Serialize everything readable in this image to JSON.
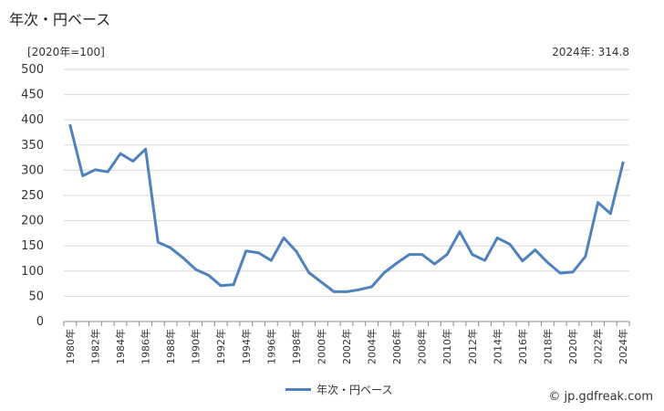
{
  "title": "年次・円ベース",
  "unit_label": "[2020年=100]",
  "latest_label": "2024年: 314.8",
  "credit": "© jp.gdfreak.com",
  "colors": {
    "series": "#4f81bd",
    "grid": "#d9d9d9",
    "axis": "#888888"
  },
  "chart_data": {
    "type": "line",
    "x": [
      "1980年",
      "1981年",
      "1982年",
      "1983年",
      "1984年",
      "1985年",
      "1986年",
      "1987年",
      "1988年",
      "1989年",
      "1990年",
      "1991年",
      "1992年",
      "1993年",
      "1994年",
      "1995年",
      "1996年",
      "1997年",
      "1998年",
      "1999年",
      "2000年",
      "2001年",
      "2002年",
      "2003年",
      "2004年",
      "2005年",
      "2006年",
      "2007年",
      "2008年",
      "2009年",
      "2010年",
      "2011年",
      "2012年",
      "2013年",
      "2014年",
      "2015年",
      "2016年",
      "2017年",
      "2018年",
      "2019年",
      "2020年",
      "2021年",
      "2022年",
      "2023年",
      "2024年"
    ],
    "x_tick_labels": [
      "1980年",
      "1982年",
      "1984年",
      "1986年",
      "1988年",
      "1990年",
      "1992年",
      "1994年",
      "1996年",
      "1998年",
      "2000年",
      "2002年",
      "2004年",
      "2006年",
      "2008年",
      "2010年",
      "2012年",
      "2014年",
      "2016年",
      "2018年",
      "2020年",
      "2022年",
      "2024年"
    ],
    "series": [
      {
        "name": "年次・円ベース",
        "values": [
          389,
          289,
          301,
          297,
          333,
          318,
          342,
          157,
          146,
          126,
          103,
          92,
          71,
          73,
          140,
          136,
          121,
          166,
          139,
          97,
          78,
          59,
          59,
          63,
          69,
          97,
          116,
          133,
          133,
          114,
          133,
          178,
          133,
          121,
          166,
          153,
          120,
          142,
          117,
          96,
          98,
          129,
          236,
          214,
          314.8
        ]
      }
    ],
    "y_ticks": [
      0,
      50,
      100,
      150,
      200,
      250,
      300,
      350,
      400,
      450,
      500
    ],
    "ylim": [
      0,
      500
    ],
    "grid": "horizontal",
    "legend_position": "bottom-center"
  }
}
